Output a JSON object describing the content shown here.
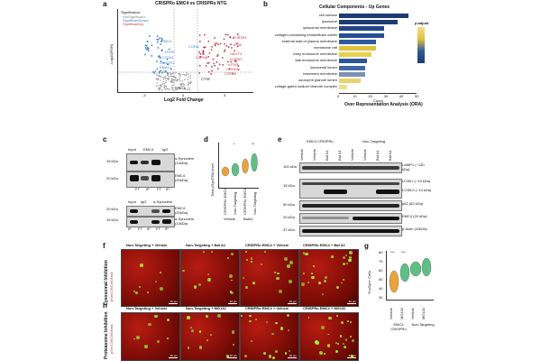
{
  "panel_a": {
    "label": "a",
    "title": "CRISPRo EMC4 vs CRISPRo NTG",
    "legend_title": "Significance",
    "legend_items": [
      "NotSignificant",
      "SignificantDown",
      "SignificantUp"
    ],
    "xlabel": "Log2 Fold Change",
    "ylabel": "-Log10(FDR)",
    "x_ticks": [
      "-3",
      "0",
      "3"
    ],
    "left_genes": [
      "EMC4",
      "HYPK",
      "SLC22A3",
      "SYNGR1",
      "EMAL2",
      "CGA"
    ],
    "right_genes": [
      "PJR3R1",
      "IFI30",
      "HAGT4",
      "KCNN2",
      "KITM1",
      "CDH12",
      "CSPA8"
    ],
    "center_genes": [
      "SNCA",
      "CTSF",
      "CAPN6",
      "CORA"
    ],
    "colors": {
      "down": "#3f7fc0",
      "up": "#c0384d",
      "ns": "#a0a0a0"
    }
  },
  "panel_b": {
    "label": "b",
    "title": "Cellular Components - Up Genes",
    "xlabel": "Count",
    "footer": "Over Representation Analysis (ORA)",
    "x_ticks": [
      "0",
      "10",
      "20",
      "30",
      "40",
      "50"
    ],
    "legend_title": "p.adjust",
    "categories": [
      "cell surface",
      "lysosome",
      "lysosomal membrane",
      "collagen-containing extracellular matrix",
      "external side of plasma membrane",
      "membrane raft",
      "early endosome membrane",
      "late endosome membrane",
      "lysosomal lumen",
      "basement membrane",
      "azurophil granule lumen",
      "voltage-gated sodium channel complex"
    ],
    "counts": [
      45,
      38,
      29,
      29,
      24,
      24,
      21,
      18,
      17,
      17,
      14,
      5
    ],
    "colors": [
      "#1c3c73",
      "#1c3c73",
      "#1f4586",
      "#274e93",
      "#2e5a9c",
      "#e2c13c",
      "#e9cf4e",
      "#2b5697",
      "#4068a6",
      "#7c8fb4",
      "#e8d36f",
      "#efdf8a"
    ]
  },
  "panel_c": {
    "label": "c",
    "top_headers": [
      "Input",
      "EMC4",
      "IgG"
    ],
    "top_lanes": [
      "FT",
      "IP",
      "FT",
      "IP"
    ],
    "top_markers": [
      "15 kDa",
      "20 kDa"
    ],
    "top_labels": [
      "α-Synuclein (14kDa)",
      "EMC4 (20kDa)"
    ],
    "bottom_headers": [
      "Input",
      "IgG",
      "α-Synuclein"
    ],
    "bottom_lanes": [
      "IP",
      "FT",
      "IP",
      "FT",
      "IP"
    ],
    "bottom_markers": [
      "20 kDa",
      "15 kDa"
    ],
    "bottom_labels": [
      "EMC4 (20kDa)",
      "α-Synuclein (14kDa)"
    ]
  },
  "panel_d": {
    "label": "d",
    "ylabel": "Total pSyn/TBA level",
    "groups": [
      "CRISPRo EMC4",
      "Non-Targeting",
      "CRISPRo EMC4",
      "Non-Targeting"
    ],
    "subgroups": [
      "Vehicle",
      "BafA1"
    ],
    "sig": [
      "*",
      "**"
    ]
  },
  "panel_e": {
    "label": "e",
    "headers": [
      "EMC4 CRISPRo",
      "Non-Targeting"
    ],
    "lanes": [
      "Vehicle",
      "Vehicle",
      "Baf A1",
      "Baf A1",
      "Vehicle",
      "Vehicle",
      "Baf A1",
      "Baf A1"
    ],
    "markers": [
      "100 kDa",
      "15 kDa",
      "50 kDa",
      "20 kDa",
      "37 kDa"
    ],
    "labels": [
      "LAMP1 (~130 kDa)",
      "LC3B-I (~19 kDa)",
      "LC3B-II (~14 kDa)",
      "p62 (62 kDa)",
      "EMC4 (20 kDa)",
      "β-Actin (42kDa)"
    ]
  },
  "panel_f": {
    "label": "f",
    "side": "Lysosomal Inhibition",
    "stain": "pSer129/CellMask",
    "titles": [
      "Non-Targeting + Vehicle",
      "Non-Targeting + Baf A1",
      "CRISPRo EMC4 + Vehicle",
      "CRISPRo EMC4 + Baf A1"
    ],
    "scale": "20 µm"
  },
  "panel_g": {
    "label": "g",
    "ylabel": "% pSyn+ Cells",
    "y_ticks": [
      "80",
      "70",
      "60",
      "50",
      "40",
      "30"
    ],
    "sig": [
      "***",
      "***"
    ],
    "groups": [
      "Vehicle",
      "MG132",
      "Vehicle",
      "MG132"
    ],
    "subgroups": [
      "EMC4 CRISPRo",
      "Non-Targeting"
    ]
  },
  "panel_h": {
    "label": "h",
    "side": "Proteasome Inhibition",
    "stain": "pSer129/CellMask",
    "titles": [
      "Non-Targeting + Vehicle",
      "Non-Targeting + MG132",
      "CRISPRo EMC4 + Vehicle",
      "CRISPRo EMC4 + MG132"
    ],
    "scale": "20 µm"
  }
}
